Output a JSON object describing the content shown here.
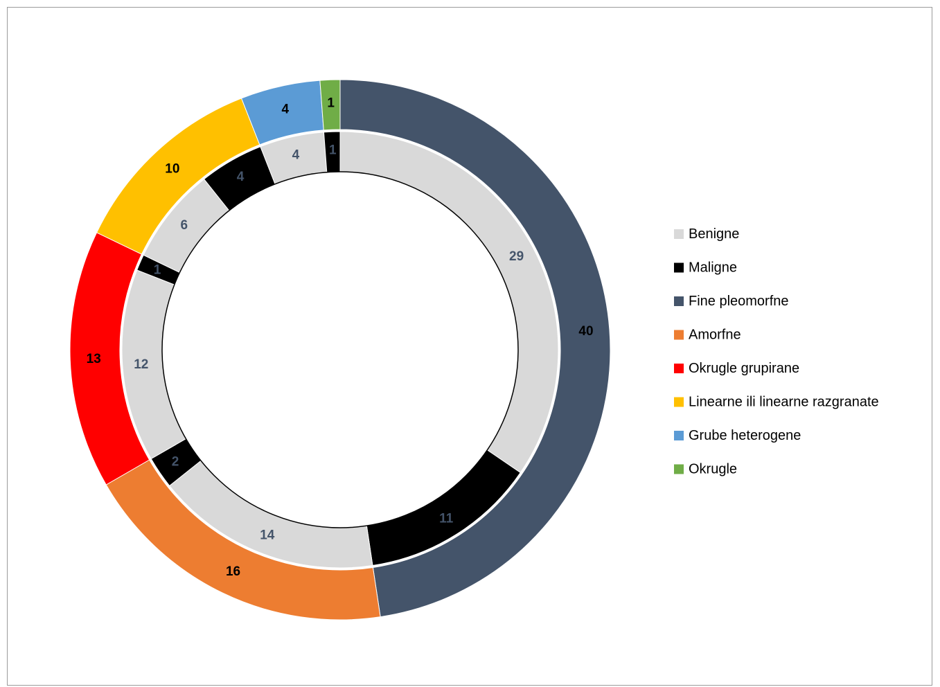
{
  "chart_data": {
    "type": "doughnut",
    "title": "",
    "legend_position": "right",
    "legend": [
      {
        "name": "Benigne",
        "color": "#d9d9d9"
      },
      {
        "name": "Maligne",
        "color": "#000000"
      },
      {
        "name": "Fine pleomorfne",
        "color": "#44546a"
      },
      {
        "name": "Amorfne",
        "color": "#ed7d31"
      },
      {
        "name": "Okrugle grupirane",
        "color": "#ff0000"
      },
      {
        "name": "Linearne ili linearne razgranate",
        "color": "#ffc000"
      },
      {
        "name": "Grube heterogene",
        "color": "#5b9bd5"
      },
      {
        "name": "Okrugle",
        "color": "#70ad47"
      }
    ],
    "outer_ring": [
      {
        "name": "Fine pleomorfne",
        "value": 40,
        "label": "40",
        "color": "#44546a",
        "label_color": "#000000"
      },
      {
        "name": "Amorfne",
        "value": 16,
        "label": "16",
        "color": "#ed7d31",
        "label_color": "#000000"
      },
      {
        "name": "Okrugle grupirane",
        "value": 13,
        "label": "13",
        "color": "#ff0000",
        "label_color": "#000000"
      },
      {
        "name": "Linearne ili linearne razgranate",
        "value": 10,
        "label": "10",
        "color": "#ffc000",
        "label_color": "#000000"
      },
      {
        "name": "Grube heterogene",
        "value": 4,
        "label": "4",
        "color": "#5b9bd5",
        "label_color": "#000000"
      },
      {
        "name": "Okrugle",
        "value": 1,
        "label": "1",
        "color": "#70ad47",
        "label_color": "#000000"
      }
    ],
    "inner_ring": [
      {
        "name": "Benigne",
        "value": 29,
        "label": "29",
        "color": "#d9d9d9",
        "label_color": "#44546a"
      },
      {
        "name": "Maligne",
        "value": 11,
        "label": "11",
        "color": "#000000",
        "label_color": "#44546a"
      },
      {
        "name": "Benigne",
        "value": 14,
        "label": "14",
        "color": "#d9d9d9",
        "label_color": "#44546a"
      },
      {
        "name": "Maligne",
        "value": 2,
        "label": "2",
        "color": "#000000",
        "label_color": "#44546a"
      },
      {
        "name": "Benigne",
        "value": 12,
        "label": "12",
        "color": "#d9d9d9",
        "label_color": "#44546a"
      },
      {
        "name": "Maligne",
        "value": 1,
        "label": "1",
        "color": "#000000",
        "label_color": "#44546a"
      },
      {
        "name": "Benigne",
        "value": 6,
        "label": "6",
        "color": "#d9d9d9",
        "label_color": "#44546a"
      },
      {
        "name": "Maligne",
        "value": 4,
        "label": "4",
        "color": "#000000",
        "label_color": "#44546a"
      },
      {
        "name": "Benigne",
        "value": 4,
        "label": "4",
        "color": "#d9d9d9",
        "label_color": "#44546a"
      },
      {
        "name": "Maligne",
        "value": 1,
        "label": "1",
        "color": "#000000",
        "label_color": "#44546a"
      }
    ]
  }
}
